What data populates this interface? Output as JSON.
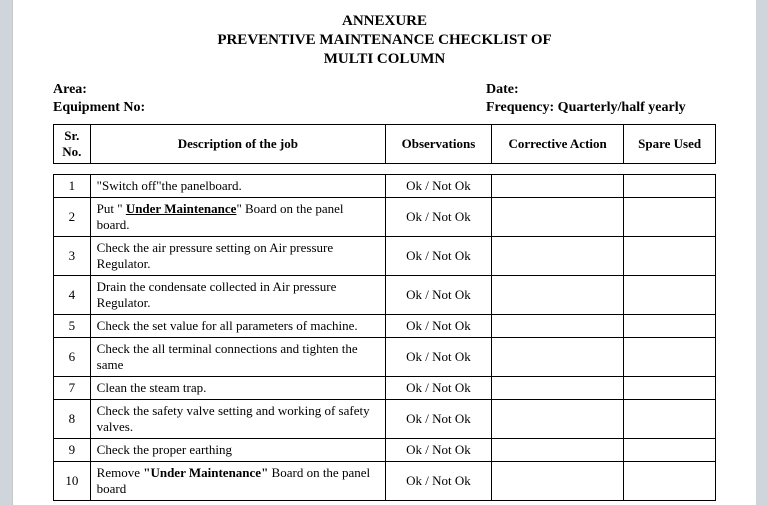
{
  "title": {
    "line1": "ANNEXURE",
    "line2": "PREVENTIVE MAINTENANCE CHECKLIST OF",
    "line3": "MULTI COLUMN"
  },
  "meta": {
    "area_label": "Area:",
    "equipment_label": "Equipment No:",
    "date_label": "Date:",
    "frequency_label": "Frequency: Quarterly/half yearly"
  },
  "columns": {
    "sr": "Sr. No.",
    "desc": "Description of the job",
    "obs": "Observations",
    "corr": "Corrective Action",
    "spare": "Spare Used"
  },
  "ok_text": "Ok / Not Ok",
  "rows": [
    {
      "sr": "1",
      "desc_pre": "\"Switch off\"the panelboard."
    },
    {
      "sr": "2",
      "desc_pre": "Put \" ",
      "desc_under": "Under Maintenance",
      "desc_post": "\" Board on the panel board."
    },
    {
      "sr": "3",
      "desc_pre": "Check the air pressure setting on Air pressure Regulator."
    },
    {
      "sr": "4",
      "desc_pre": "Drain the condensate collected in Air pressure Regulator."
    },
    {
      "sr": "5",
      "desc_pre": "Check the set value for all parameters of machine."
    },
    {
      "sr": "6",
      "desc_pre": "Check the all terminal connections and tighten the same"
    },
    {
      "sr": "7",
      "desc_pre": "Clean the steam trap."
    },
    {
      "sr": "8",
      "desc_pre": "Check the safety valve setting and working of safety valves."
    },
    {
      "sr": "9",
      "desc_pre": "Check the proper earthing"
    },
    {
      "sr": "10",
      "desc_pre": "Remove ",
      "desc_bold": "\"Under Maintenance\"",
      "desc_post": " Board on the panel board"
    }
  ]
}
